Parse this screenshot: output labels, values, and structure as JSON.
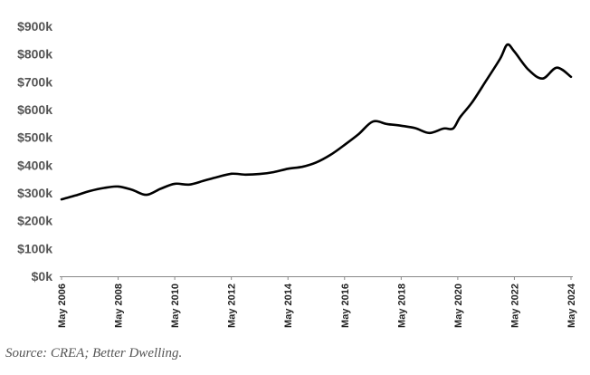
{
  "chart_data": {
    "type": "line",
    "title": "",
    "xlabel": "",
    "ylabel": "",
    "ylim": [
      0,
      900000
    ],
    "grid": false,
    "legend": "none",
    "yticks": [
      "$0k",
      "$100k",
      "$200k",
      "$300k",
      "$400k",
      "$500k",
      "$600k",
      "$700k",
      "$800k",
      "$900k"
    ],
    "xticks": [
      "May 2006",
      "May 2008",
      "May 2010",
      "May 2012",
      "May 2014",
      "May 2016",
      "May 2018",
      "May 2020",
      "May 2022",
      "May 2024"
    ],
    "series": [
      {
        "color": "#000000",
        "points": [
          [
            "May 2006",
            277000
          ],
          [
            "Nov 2006",
            291000
          ],
          [
            "May 2007",
            307000
          ],
          [
            "Nov 2007",
            318000
          ],
          [
            "May 2008",
            323000
          ],
          [
            "Nov 2008",
            311000
          ],
          [
            "May 2009",
            293000
          ],
          [
            "Nov 2009",
            315000
          ],
          [
            "May 2010",
            333000
          ],
          [
            "Nov 2010",
            330000
          ],
          [
            "May 2011",
            343000
          ],
          [
            "Nov 2011",
            357000
          ],
          [
            "May 2012",
            369000
          ],
          [
            "Nov 2012",
            366000
          ],
          [
            "May 2013",
            368000
          ],
          [
            "Nov 2013",
            375000
          ],
          [
            "May 2014",
            387000
          ],
          [
            "Nov 2014",
            394000
          ],
          [
            "May 2015",
            410000
          ],
          [
            "Nov 2015",
            437000
          ],
          [
            "May 2016",
            473000
          ],
          [
            "Nov 2016",
            512000
          ],
          [
            "May 2017",
            557000
          ],
          [
            "Nov 2017",
            548000
          ],
          [
            "May 2018",
            542000
          ],
          [
            "Nov 2018",
            533000
          ],
          [
            "May 2019",
            516000
          ],
          [
            "Nov 2019",
            532000
          ],
          [
            "Mar 2020",
            532000
          ],
          [
            "Jun 2020",
            573000
          ],
          [
            "Nov 2020",
            625000
          ],
          [
            "May 2021",
            704000
          ],
          [
            "Nov 2021",
            784000
          ],
          [
            "Feb 2022",
            834000
          ],
          [
            "May 2022",
            809000
          ],
          [
            "Nov 2022",
            743000
          ],
          [
            "May 2023",
            712000
          ],
          [
            "Nov 2023",
            751000
          ],
          [
            "May 2024",
            718000
          ]
        ]
      }
    ]
  },
  "source": "Source: CREA; Better Dwelling."
}
